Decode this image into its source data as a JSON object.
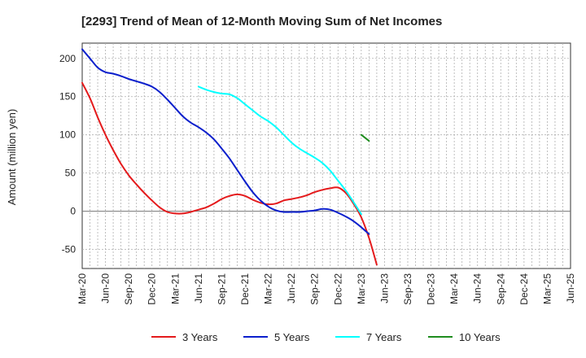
{
  "chart_data": {
    "type": "line",
    "title": "[2293]  Trend of Mean of 12-Month Moving Sum of Net Incomes",
    "ylabel": "Amount (million yen)",
    "xlabel": "",
    "ylim": [
      -75,
      220
    ],
    "yticks": [
      200,
      150,
      100,
      50,
      0,
      -50
    ],
    "xticks": [
      "Mar-20",
      "Jun-20",
      "Sep-20",
      "Dec-20",
      "Mar-21",
      "Jun-21",
      "Sep-21",
      "Dec-21",
      "Mar-22",
      "Jun-22",
      "Sep-22",
      "Dec-22",
      "Mar-23",
      "Jun-23",
      "Sep-23",
      "Dec-23",
      "Mar-24",
      "Jun-24",
      "Sep-24",
      "Dec-24",
      "Mar-25",
      "Jun-25"
    ],
    "grid": true,
    "legend_position": "bottom",
    "series": [
      {
        "name": "3 Years",
        "color": "#e41a1c",
        "values": [
          168,
          148,
          123,
          100,
          80,
          62,
          47,
          35,
          24,
          14,
          5,
          -1,
          -3,
          -3,
          -1,
          2,
          5,
          10,
          16,
          20,
          22,
          20,
          15,
          11,
          9,
          10,
          14,
          16,
          18,
          21,
          25,
          28,
          30,
          31,
          24,
          10,
          -8,
          -35,
          -70
        ]
      },
      {
        "name": "5 Years",
        "color": "#0b1fcc",
        "values": [
          212,
          200,
          188,
          182,
          180,
          177,
          173,
          170,
          167,
          163,
          156,
          146,
          135,
          124,
          116,
          110,
          103,
          94,
          82,
          69,
          54,
          39,
          25,
          14,
          6,
          1,
          -1,
          -1,
          -1,
          0,
          1,
          3,
          2,
          -2,
          -7,
          -13,
          -21,
          -30
        ]
      },
      {
        "name": "7 Years",
        "color": "#00ffff",
        "values": [
          null,
          null,
          null,
          null,
          null,
          null,
          null,
          null,
          null,
          null,
          null,
          null,
          null,
          null,
          null,
          163,
          159,
          156,
          154,
          153,
          148,
          140,
          132,
          124,
          118,
          110,
          100,
          90,
          82,
          76,
          70,
          63,
          53,
          40,
          27,
          12,
          -4
        ]
      },
      {
        "name": "10 Years",
        "color": "#1e8c1e",
        "values": [
          null,
          null,
          null,
          null,
          null,
          null,
          null,
          null,
          null,
          null,
          null,
          null,
          null,
          null,
          null,
          null,
          null,
          null,
          null,
          null,
          null,
          null,
          null,
          null,
          null,
          null,
          null,
          null,
          null,
          null,
          null,
          null,
          null,
          null,
          null,
          null,
          100,
          92
        ]
      }
    ]
  }
}
